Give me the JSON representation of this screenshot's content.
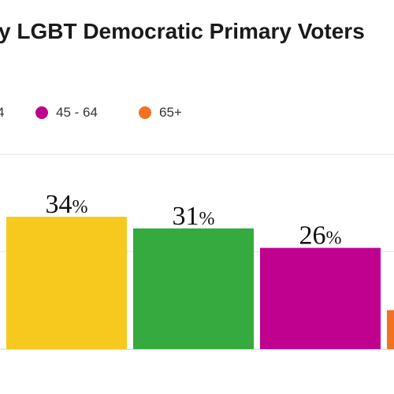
{
  "chart_data": {
    "type": "bar",
    "title": "y LGBT Democratic Primary Voters",
    "legend": [
      {
        "label": "4",
        "color": "#c0008f"
      },
      {
        "label": "45 - 64",
        "color": "#c0008f"
      },
      {
        "label": "65+",
        "color": "#f07222"
      }
    ],
    "categories": [
      "",
      "",
      "",
      ""
    ],
    "values": [
      34,
      31,
      26,
      10
    ],
    "colors": [
      "#f7c91e",
      "#35aa3e",
      "#c0008f",
      "#f07222"
    ],
    "value_labels": [
      {
        "num": "34",
        "unit": "%"
      },
      {
        "num": "31",
        "unit": "%"
      },
      {
        "num": "26",
        "unit": "%"
      },
      {
        "num": "",
        "unit": ""
      }
    ],
    "gridlines": [
      0,
      25,
      50
    ],
    "ylim": [
      0,
      50
    ],
    "grid": true
  }
}
